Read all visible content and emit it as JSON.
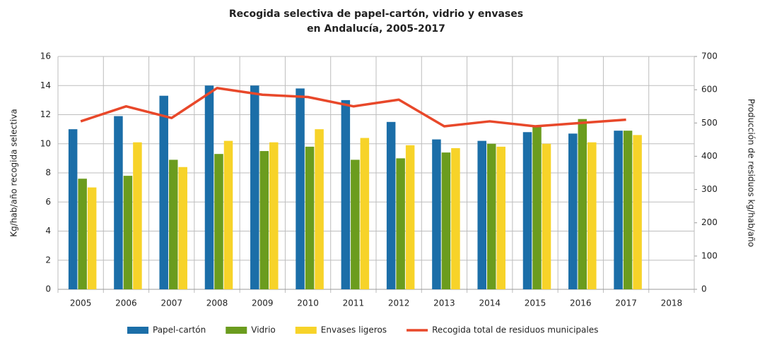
{
  "chart_data": {
    "type": "bar",
    "title": [
      "Recogida selectiva de papel-cartón, vidrio y envases",
      "en Andalucía, 2005-2017"
    ],
    "y_label": "Kg/hab/año recogida selectiva",
    "y2_label": "Producción de residuos kg/hab/año",
    "categories": [
      "2005",
      "2006",
      "2007",
      "2008",
      "2009",
      "2010",
      "2011",
      "2012",
      "2013",
      "2014",
      "2015",
      "2016",
      "2017",
      "2018"
    ],
    "series": [
      {
        "name": "Papel-cartón",
        "color": "#1b6ea8",
        "type": "bar",
        "values": [
          11.0,
          11.9,
          13.3,
          14.0,
          14.0,
          13.8,
          13.0,
          11.5,
          10.3,
          10.2,
          10.8,
          10.7,
          10.9,
          null
        ]
      },
      {
        "name": "Vidrio",
        "color": "#6b9c1e",
        "type": "bar",
        "values": [
          7.6,
          7.8,
          8.9,
          9.3,
          9.5,
          9.8,
          8.9,
          9.0,
          9.4,
          10.0,
          11.2,
          11.7,
          10.9,
          null
        ]
      },
      {
        "name": "Envases ligeros",
        "color": "#f7d329",
        "type": "bar",
        "values": [
          7.0,
          10.1,
          8.4,
          10.2,
          10.1,
          11.0,
          10.4,
          9.9,
          9.7,
          9.8,
          10.0,
          10.1,
          10.6,
          null
        ]
      },
      {
        "name": "Recogida total de residuos municipales",
        "color": "#e8482a",
        "type": "line",
        "axis": "y2",
        "values": [
          505,
          550,
          515,
          605,
          585,
          578,
          550,
          570,
          490,
          505,
          490,
          500,
          510,
          null
        ]
      }
    ],
    "ylim": [
      0,
      16
    ],
    "yticks": [
      0,
      2,
      4,
      6,
      8,
      10,
      12,
      14,
      16
    ],
    "y2lim": [
      0,
      700
    ],
    "y2ticks": [
      0,
      100,
      200,
      300,
      400,
      500,
      600,
      700
    ],
    "grid": true,
    "legend": "bottom"
  }
}
